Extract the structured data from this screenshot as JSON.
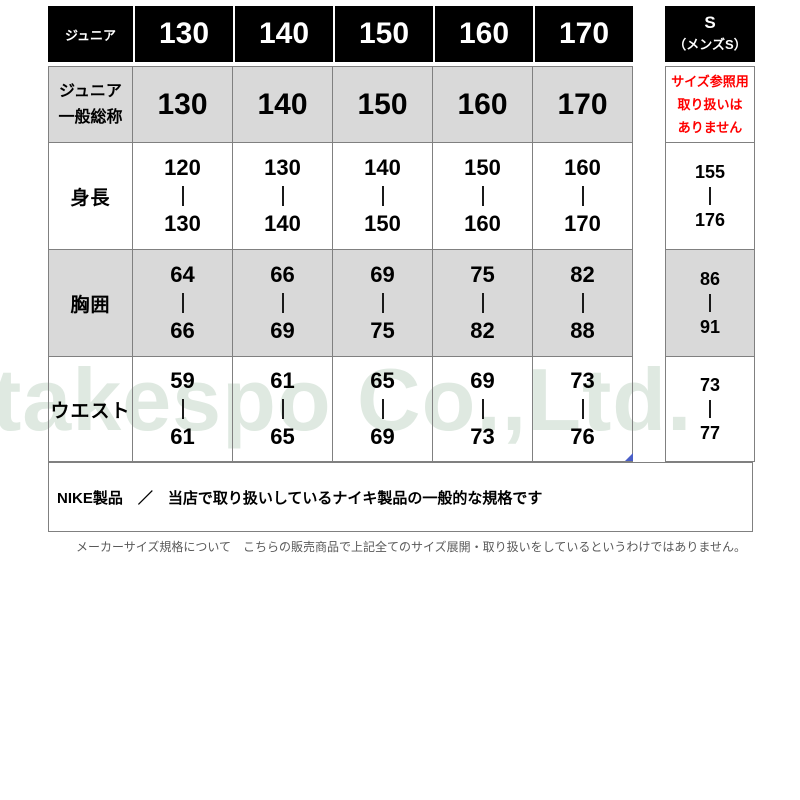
{
  "colors": {
    "header_bg": "#000000",
    "header_text": "#ffffff",
    "row_gray": "#d9d9d9",
    "border": "#808080",
    "alert_red": "#ff0000",
    "note_gray": "#595959",
    "corner_marker_blue": "#4a5fc8",
    "watermark": "#dfe9e1"
  },
  "watermark": {
    "text": "takespo Co.,Ltd."
  },
  "header": {
    "junior_label": "ジュニア",
    "sizes": [
      "130",
      "140",
      "150",
      "160",
      "170"
    ],
    "s_line1": "S",
    "s_line2": "（メンズS）"
  },
  "alias": {
    "label_line1": "ジュニア",
    "label_line2": "一般総称",
    "values": [
      "130",
      "140",
      "150",
      "160",
      "170"
    ],
    "s_note": [
      "サイズ参照用",
      "取り扱いは",
      "ありません"
    ]
  },
  "rows": [
    {
      "label": "身長",
      "ranges": [
        [
          "120",
          "130"
        ],
        [
          "130",
          "140"
        ],
        [
          "140",
          "150"
        ],
        [
          "150",
          "160"
        ],
        [
          "160",
          "170"
        ]
      ],
      "s_range": [
        "155",
        "176"
      ]
    },
    {
      "label": "胸囲",
      "ranges": [
        [
          "64",
          "66"
        ],
        [
          "66",
          "69"
        ],
        [
          "69",
          "75"
        ],
        [
          "75",
          "82"
        ],
        [
          "82",
          "88"
        ]
      ],
      "s_range": [
        "86",
        "91"
      ]
    },
    {
      "label": "ウエスト",
      "ranges": [
        [
          "59",
          "61"
        ],
        [
          "61",
          "65"
        ],
        [
          "65",
          "69"
        ],
        [
          "69",
          "73"
        ],
        [
          "73",
          "76"
        ]
      ],
      "s_range": [
        "73",
        "77"
      ]
    }
  ],
  "notes": {
    "nike": "NIKE製品　／　当店で取り扱いしているナイキ製品の一般的な規格です",
    "disclaimer": "メーカーサイズ規格について　こちらの販売商品で上記全てのサイズ展開・取り扱いをしているというわけではありません。"
  }
}
